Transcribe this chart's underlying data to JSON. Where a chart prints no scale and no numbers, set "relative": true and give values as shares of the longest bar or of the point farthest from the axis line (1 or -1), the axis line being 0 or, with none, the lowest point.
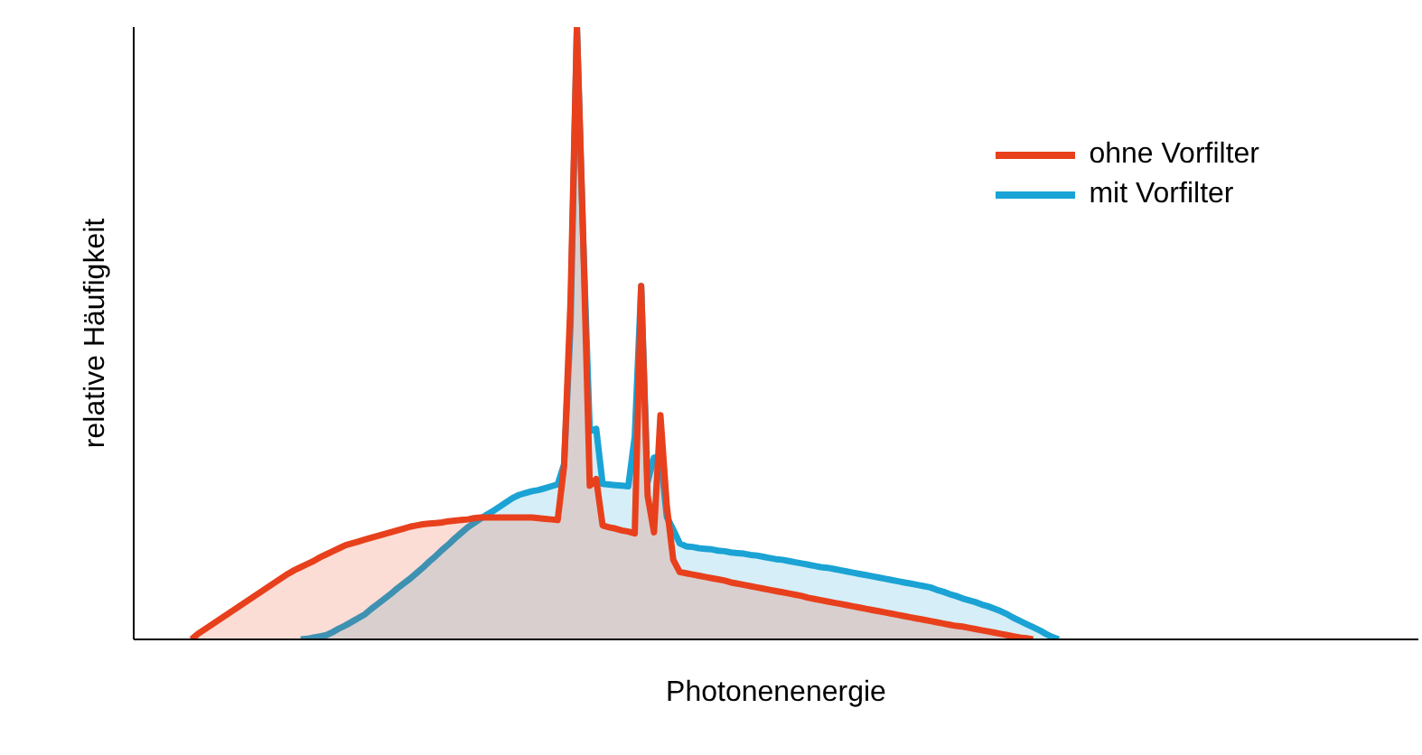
{
  "chart_data": {
    "type": "area",
    "relative": true,
    "xlabel": "Photonenenergie",
    "ylabel": "relative Häufigkeit",
    "legend": "top right",
    "grid": false,
    "marker": "none",
    "line_style": "solid",
    "categories": [
      null,
      null,
      null,
      null,
      null,
      null,
      null,
      null,
      null,
      null,
      null,
      null,
      null,
      null,
      null,
      null,
      null,
      null,
      null,
      null,
      null,
      null,
      null,
      null,
      null,
      null,
      null,
      null,
      null,
      null,
      null,
      null,
      null,
      null,
      null,
      null,
      null,
      null,
      null,
      null,
      null,
      null,
      null,
      null,
      null,
      null,
      null,
      null,
      null,
      null,
      null,
      null,
      null,
      null,
      null,
      null,
      null,
      null,
      null,
      null,
      null,
      null,
      null,
      null,
      null,
      null,
      null,
      null,
      null,
      null,
      null,
      null,
      null,
      null,
      null,
      null,
      null,
      null,
      null,
      null,
      null,
      null,
      null,
      null,
      null,
      null,
      null,
      null,
      null,
      null,
      null,
      null,
      null,
      null,
      null,
      null,
      null,
      null,
      null,
      null,
      null,
      null,
      null,
      null,
      null,
      null,
      null,
      null,
      null,
      null,
      null,
      null,
      null,
      null,
      null,
      null,
      null,
      null,
      null,
      null,
      null,
      null,
      null,
      null,
      null,
      null,
      null,
      null,
      null,
      null,
      null,
      null,
      null,
      null,
      null,
      null
    ],
    "series": [
      {
        "name": "ohne Vorfilter",
        "color": "#e8401c",
        "values": [
          0,
          0.009,
          0.016,
          0.023,
          0.03,
          0.037,
          0.044,
          0.051,
          0.058,
          0.065,
          0.072,
          0.079,
          0.086,
          0.093,
          0.1,
          0.107,
          0.113,
          0.118,
          0.123,
          0.128,
          0.134,
          0.139,
          0.144,
          0.149,
          0.154,
          0.157,
          0.16,
          0.163,
          0.166,
          0.169,
          0.172,
          0.175,
          0.178,
          0.181,
          0.184,
          0.186,
          0.188,
          0.189,
          0.19,
          0.191,
          0.193,
          0.194,
          0.195,
          0.196,
          0.198,
          0.199,
          0.199,
          0.199,
          0.199,
          0.199,
          0.199,
          0.199,
          0.199,
          0.199,
          0.198,
          0.197,
          0.196,
          0.195,
          0.283,
          0.551,
          1,
          0.645,
          0.251,
          0.262,
          0.186,
          0.183,
          0.181,
          0.178,
          0.176,
          0.173,
          0.577,
          0.235,
          0.175,
          0.366,
          0.217,
          0.13,
          0.11,
          0.108,
          0.106,
          0.104,
          0.102,
          0.1,
          0.098,
          0.096,
          0.093,
          0.091,
          0.089,
          0.087,
          0.085,
          0.083,
          0.081,
          0.079,
          0.077,
          0.075,
          0.073,
          0.071,
          0.068,
          0.066,
          0.064,
          0.062,
          0.06,
          0.058,
          0.056,
          0.054,
          0.052,
          0.05,
          0.048,
          0.046,
          0.044,
          0.042,
          0.04,
          0.038,
          0.036,
          0.034,
          0.032,
          0.03,
          0.028,
          0.026,
          0.024,
          0.022,
          0.021,
          0.019,
          0.017,
          0.015,
          0.013,
          0.011,
          0.009,
          0.007,
          0.005,
          0.003,
          0.002,
          0,
          null,
          null,
          null,
          null
        ]
      },
      {
        "name": "mit Vorfilter",
        "color": "#1aa3d4",
        "values": [
          null,
          null,
          null,
          null,
          null,
          null,
          null,
          null,
          null,
          null,
          null,
          null,
          null,
          null,
          null,
          null,
          null,
          0,
          0.001,
          0.003,
          0.005,
          0.007,
          0.012,
          0.018,
          0.023,
          0.029,
          0.035,
          0.041,
          0.05,
          0.058,
          0.066,
          0.074,
          0.083,
          0.091,
          0.099,
          0.108,
          0.117,
          0.127,
          0.136,
          0.146,
          0.155,
          0.165,
          0.174,
          0.183,
          0.19,
          0.197,
          0.204,
          0.21,
          0.217,
          0.224,
          0.231,
          0.236,
          0.239,
          0.242,
          0.244,
          0.247,
          0.25,
          0.253,
          0.286,
          0.512,
          1,
          0.645,
          0.34,
          0.344,
          0.254,
          0.253,
          0.252,
          0.251,
          0.25,
          0.331,
          0.577,
          0.257,
          0.297,
          0.298,
          0.2,
          0.179,
          0.157,
          0.152,
          0.151,
          0.149,
          0.148,
          0.147,
          0.145,
          0.144,
          0.142,
          0.141,
          0.14,
          0.138,
          0.137,
          0.135,
          0.133,
          0.131,
          0.13,
          0.128,
          0.126,
          0.124,
          0.122,
          0.12,
          0.118,
          0.117,
          0.115,
          0.113,
          0.111,
          0.109,
          0.107,
          0.105,
          0.103,
          0.101,
          0.099,
          0.097,
          0.095,
          0.093,
          0.091,
          0.089,
          0.087,
          0.085,
          0.081,
          0.078,
          0.074,
          0.071,
          0.067,
          0.064,
          0.061,
          0.057,
          0.054,
          0.05,
          0.046,
          0.041,
          0.035,
          0.03,
          0.025,
          0.02,
          0.015,
          0.009,
          0.004,
          0
        ]
      }
    ]
  }
}
